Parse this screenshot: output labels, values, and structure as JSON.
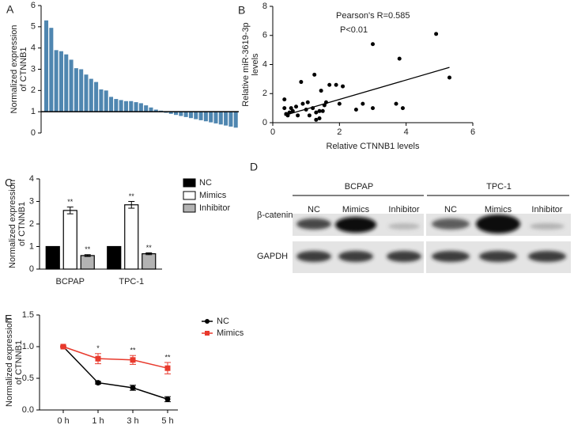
{
  "chart_data": [
    {
      "type": "bar",
      "label": "A",
      "ylabel": [
        "Normalized expression",
        "of CTNNB1"
      ],
      "color": "#4f86b0",
      "baseline": 1,
      "ylim": [
        0,
        6
      ],
      "yticks": [
        0,
        1,
        2,
        3,
        4,
        5,
        6
      ],
      "values": [
        5.3,
        4.95,
        3.9,
        3.85,
        3.7,
        3.45,
        3.05,
        3.0,
        2.75,
        2.55,
        2.4,
        2.05,
        2.0,
        1.7,
        1.6,
        1.55,
        1.5,
        1.5,
        1.45,
        1.4,
        1.3,
        1.2,
        1.1,
        1.05,
        0.95,
        0.9,
        0.85,
        0.8,
        0.75,
        0.7,
        0.65,
        0.6,
        0.55,
        0.5,
        0.45,
        0.4,
        0.35,
        0.3,
        0.25
      ]
    },
    {
      "type": "scatter",
      "label": "B",
      "xlabel": "Relative CTNNB1 levels",
      "ylabel": [
        "Relative miR-3619-3p",
        "levels"
      ],
      "annotations": [
        "Pearson's R=0.585",
        "P<0.01"
      ],
      "color": "#000000",
      "xlim": [
        0,
        6
      ],
      "xticks": [
        0,
        2,
        4,
        6
      ],
      "ylim": [
        0,
        8
      ],
      "yticks": [
        0,
        2,
        4,
        6,
        8
      ],
      "x": [
        0.35,
        0.35,
        0.4,
        0.45,
        0.5,
        0.55,
        0.6,
        0.7,
        0.75,
        0.85,
        0.9,
        1.0,
        1.05,
        1.1,
        1.2,
        1.25,
        1.3,
        1.3,
        1.4,
        1.4,
        1.45,
        1.5,
        1.55,
        1.6,
        1.7,
        1.9,
        2.0,
        2.1,
        2.5,
        2.7,
        3.0,
        3.0,
        3.7,
        3.8,
        3.9,
        4.9,
        5.3
      ],
      "y": [
        1.6,
        1.0,
        0.6,
        0.5,
        0.7,
        1.0,
        0.8,
        1.1,
        0.5,
        2.8,
        1.3,
        0.9,
        1.4,
        0.5,
        1.0,
        3.3,
        0.7,
        0.2,
        0.3,
        0.8,
        2.2,
        0.8,
        1.2,
        1.4,
        2.6,
        2.6,
        1.3,
        2.5,
        0.9,
        1.3,
        1.0,
        5.4,
        1.3,
        4.4,
        1.0,
        6.1,
        3.1
      ],
      "trend": {
        "x": [
          0.35,
          5.3
        ],
        "y": [
          0.5,
          3.8
        ]
      }
    },
    {
      "type": "groupedbar",
      "label": "C",
      "ylabel": [
        "Normalized expression",
        "of CTNNB1"
      ],
      "ylim": [
        0,
        4
      ],
      "yticks": [
        0,
        1,
        2,
        3,
        4
      ],
      "categories": [
        "BCPAP",
        "TPC-1"
      ],
      "series": [
        {
          "name": "NC",
          "color": "#000000",
          "values": [
            1,
            1
          ]
        },
        {
          "name": "Mimics",
          "color": "#ffffff",
          "values": [
            2.6,
            2.85
          ],
          "errors": [
            0.15,
            0.15
          ],
          "significance": [
            "**",
            "**"
          ]
        },
        {
          "name": "Inhibitor",
          "color": "#b3b3b3",
          "values": [
            0.6,
            0.68
          ],
          "errors": [
            0.04,
            0.04
          ],
          "significance": [
            "**",
            "**"
          ]
        }
      ]
    },
    {
      "type": "blot",
      "label": "D",
      "groups": [
        {
          "name": "BCPAP",
          "lanes": [
            "NC",
            "Mimics",
            "Inhibitor"
          ]
        },
        {
          "name": "TPC-1",
          "lanes": [
            "NC",
            "Mimics",
            "Inhibitor"
          ]
        }
      ],
      "rows": [
        "β-catenin",
        "GAPDH"
      ]
    },
    {
      "type": "line",
      "label": "E",
      "ylabel": [
        "Normalized expression",
        "of CTNNB1"
      ],
      "ylim": [
        0,
        1.5
      ],
      "yticks": [
        {
          "value": 0,
          "label": "0.0"
        },
        0.5,
        {
          "value": 1,
          "label": "1.0"
        },
        1.5
      ],
      "categories": [
        "0 h",
        "1 h",
        "3 h",
        "5 h"
      ],
      "significance": [
        null,
        "*",
        "**",
        "**"
      ],
      "series": [
        {
          "name": "NC",
          "color": "#000000",
          "marker": "circle",
          "values": [
            1.0,
            0.43,
            0.35,
            0.17
          ],
          "errors": [
            0.01,
            0.02,
            0.04,
            0.04
          ]
        },
        {
          "name": "Mimics",
          "color": "#e8392c",
          "marker": "square",
          "values": [
            1.0,
            0.81,
            0.79,
            0.66
          ],
          "errors": [
            0.01,
            0.08,
            0.07,
            0.09
          ]
        }
      ]
    }
  ]
}
